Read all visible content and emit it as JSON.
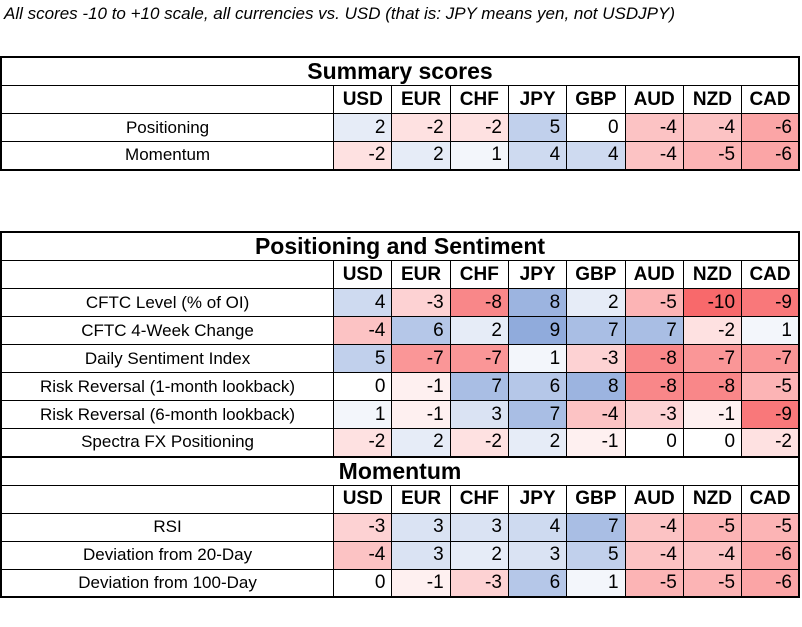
{
  "note": "All scores -10 to +10 scale, all currencies vs. USD (that is: JPY means yen, not USDJPY)",
  "currencies": [
    "USD",
    "EUR",
    "CHF",
    "JPY",
    "GBP",
    "AUD",
    "NZD",
    "CAD"
  ],
  "colors": {
    "positive": "#8faadc",
    "negative": "#f8696b",
    "neutral": "#ffffff"
  },
  "sections": [
    {
      "title": "Summary scores",
      "rows": [
        {
          "label": "Positioning",
          "values": [
            2,
            -2,
            -2,
            5,
            0,
            -4,
            -4,
            -6
          ]
        },
        {
          "label": "Momentum",
          "values": [
            -2,
            2,
            1,
            4,
            4,
            -4,
            -5,
            -6
          ]
        }
      ]
    },
    {
      "title": "Positioning and Sentiment",
      "rows": [
        {
          "label": "CFTC Level (% of OI)",
          "values": [
            4,
            -3,
            -8,
            8,
            2,
            -5,
            -10,
            -9
          ]
        },
        {
          "label": "CFTC 4-Week Change",
          "values": [
            -4,
            6,
            2,
            9,
            7,
            7,
            -2,
            1
          ]
        },
        {
          "label": "Daily Sentiment Index",
          "values": [
            5,
            -7,
            -7,
            1,
            -3,
            -8,
            -7,
            -7
          ]
        },
        {
          "label": "Risk Reversal (1-month lookback)",
          "values": [
            0,
            -1,
            7,
            6,
            8,
            -8,
            -8,
            -5
          ]
        },
        {
          "label": "Risk Reversal (6-month lookback)",
          "values": [
            1,
            -1,
            3,
            7,
            -4,
            -3,
            -1,
            -9
          ]
        },
        {
          "label": "Spectra FX Positioning",
          "values": [
            -2,
            2,
            -2,
            2,
            -1,
            0,
            0,
            -2
          ]
        }
      ]
    },
    {
      "title": "Momentum",
      "rows": [
        {
          "label": "RSI",
          "values": [
            -3,
            3,
            3,
            4,
            7,
            -4,
            -5,
            -5
          ]
        },
        {
          "label": "Deviation from 20-Day",
          "values": [
            -4,
            3,
            2,
            3,
            5,
            -4,
            -4,
            -6
          ]
        },
        {
          "label": "Deviation from 100-Day",
          "values": [
            0,
            -1,
            -3,
            6,
            1,
            -5,
            -5,
            -6
          ]
        }
      ]
    }
  ]
}
